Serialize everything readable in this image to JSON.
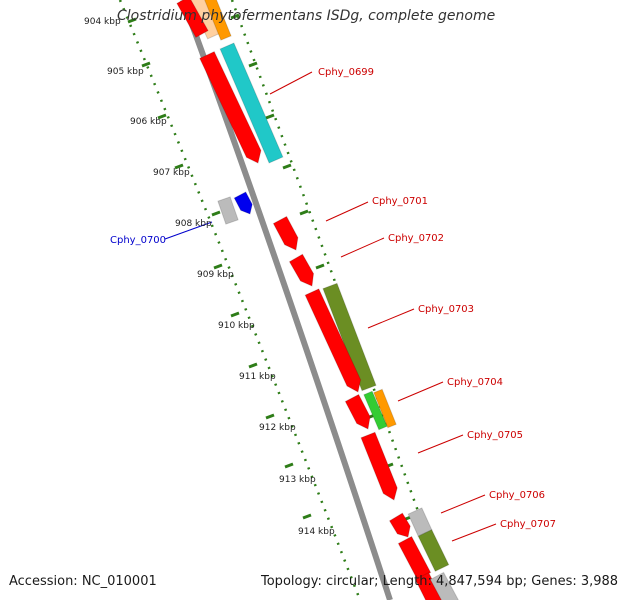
{
  "title": "Clostridium phytofermentans ISDg, complete genome",
  "accession": "Accession: NC_010001",
  "topology": "Topology: circular; Length: 4,847,594 bp; Genes: 3,988",
  "colors": {
    "backbone": "#8c8c8c",
    "tick": "#2e7d18",
    "forward_label": "#cc0000",
    "reverse_label": "#0000cc",
    "gene_red": "#ff0000",
    "gene_cyan": "#20c8c8",
    "gene_orange": "#ff9900",
    "gene_olive": "#6b8e23",
    "gene_green": "#33cc33",
    "gene_gray": "#bbbbbb",
    "gene_blue": "#0000ee",
    "gene_peach": "#ffd0a0"
  },
  "scale_labels": [
    "904 kbp",
    "905 kbp",
    "906 kbp",
    "907 kbp",
    "908 kbp",
    "909 kbp",
    "910 kbp",
    "911 kbp",
    "912 kbp",
    "913 kbp",
    "914 kbp"
  ],
  "gene_labels": {
    "Cphy_0699": "Cphy_0699",
    "Cphy_0700": "Cphy_0700",
    "Cphy_0701": "Cphy_0701",
    "Cphy_0702": "Cphy_0702",
    "Cphy_0703": "Cphy_0703",
    "Cphy_0704": "Cphy_0704",
    "Cphy_0705": "Cphy_0705",
    "Cphy_0706": "Cphy_0706",
    "Cphy_0707": "Cphy_0707"
  }
}
